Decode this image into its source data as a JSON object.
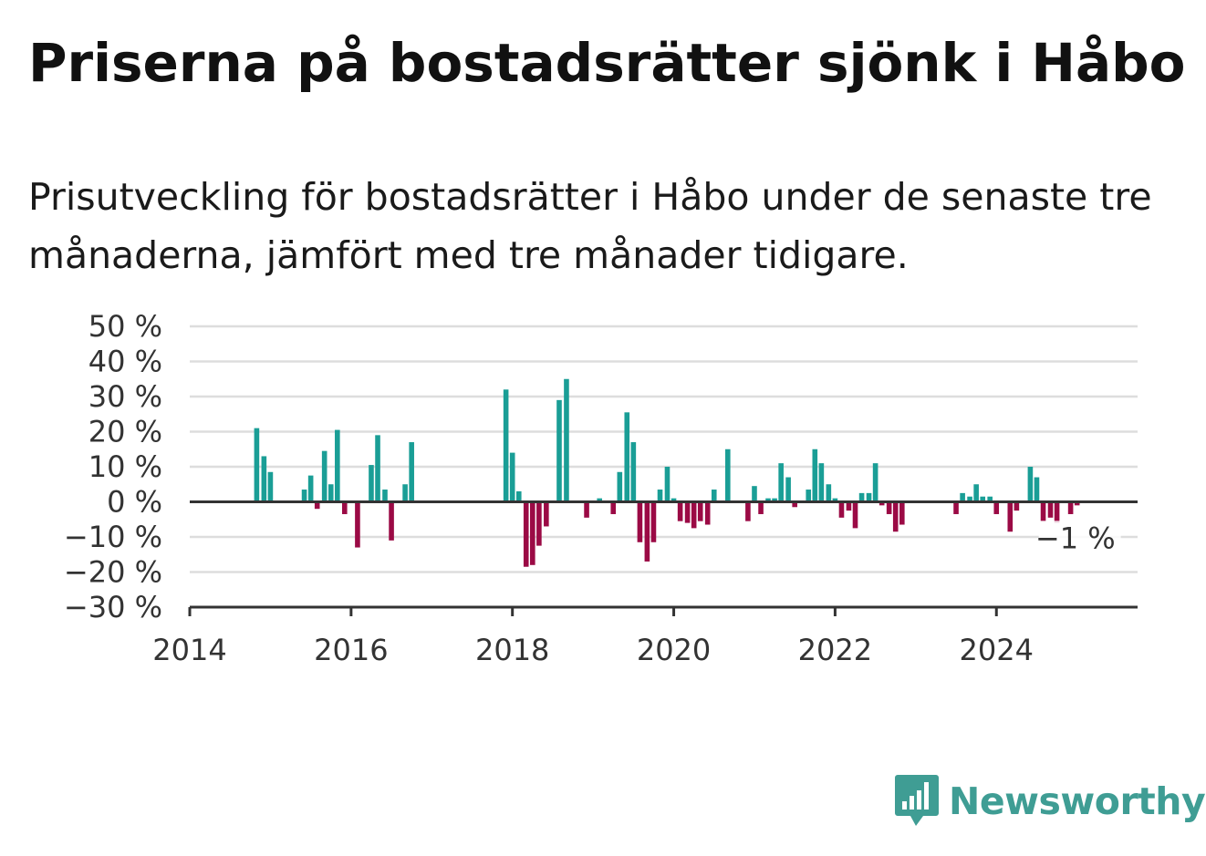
{
  "header": {
    "title": "Priserna på bostadsrätter sjönk i Håbo",
    "subtitle": "Prisutveckling för bostadsrätter i Håbo under de senaste tre månaderna, jämfört med tre månader tidigare."
  },
  "brand": {
    "name": "Newsworthy",
    "color": "#3f9d94",
    "icon": "bar-chart-bubble-icon"
  },
  "colors": {
    "positive": "#1a9e96",
    "negative": "#9b0a45",
    "grid": "#dddddd",
    "axis": "#333333"
  },
  "chart_data": {
    "type": "bar",
    "title": "Priserna på bostadsrätter sjönk i Håbo",
    "xlabel": "",
    "ylabel": "",
    "xlim": [
      2014.0,
      2025.75
    ],
    "ylim": [
      -30,
      50
    ],
    "yticks": [
      -30,
      -20,
      -10,
      0,
      10,
      20,
      30,
      40,
      50
    ],
    "ytick_labels": [
      "−30 %",
      "−20 %",
      "−10 %",
      "0 %",
      "10 %",
      "20 %",
      "30 %",
      "40 %",
      "50 %"
    ],
    "xticks": [
      2014,
      2016,
      2018,
      2020,
      2022,
      2024
    ],
    "xtick_labels": [
      "2014",
      "2016",
      "2018",
      "2020",
      "2022",
      "2024"
    ],
    "grid": true,
    "annotation": {
      "text": "−1 %",
      "x": 2025.0,
      "y": -1
    },
    "points": [
      {
        "x": 2014.83,
        "y": 21
      },
      {
        "x": 2014.92,
        "y": 13
      },
      {
        "x": 2015.0,
        "y": 8.5
      },
      {
        "x": 2015.42,
        "y": 3.5
      },
      {
        "x": 2015.5,
        "y": 7.5
      },
      {
        "x": 2015.58,
        "y": -2
      },
      {
        "x": 2015.67,
        "y": 14.5
      },
      {
        "x": 2015.75,
        "y": 5
      },
      {
        "x": 2015.83,
        "y": 20.5
      },
      {
        "x": 2015.92,
        "y": -3.5
      },
      {
        "x": 2016.08,
        "y": -13
      },
      {
        "x": 2016.25,
        "y": 10.5
      },
      {
        "x": 2016.33,
        "y": 19
      },
      {
        "x": 2016.42,
        "y": 3.5
      },
      {
        "x": 2016.5,
        "y": -11
      },
      {
        "x": 2016.67,
        "y": 5
      },
      {
        "x": 2016.75,
        "y": 17
      },
      {
        "x": 2017.92,
        "y": 32
      },
      {
        "x": 2018.0,
        "y": 14
      },
      {
        "x": 2018.08,
        "y": 3
      },
      {
        "x": 2018.17,
        "y": -18.5
      },
      {
        "x": 2018.25,
        "y": -18
      },
      {
        "x": 2018.33,
        "y": -12.5
      },
      {
        "x": 2018.42,
        "y": -7
      },
      {
        "x": 2018.58,
        "y": 29
      },
      {
        "x": 2018.67,
        "y": 35
      },
      {
        "x": 2018.92,
        "y": -4.5
      },
      {
        "x": 2019.08,
        "y": 1
      },
      {
        "x": 2019.25,
        "y": -3.5
      },
      {
        "x": 2019.33,
        "y": 8.5
      },
      {
        "x": 2019.42,
        "y": 25.5
      },
      {
        "x": 2019.5,
        "y": 17
      },
      {
        "x": 2019.58,
        "y": -11.5
      },
      {
        "x": 2019.67,
        "y": -17
      },
      {
        "x": 2019.75,
        "y": -11.5
      },
      {
        "x": 2019.83,
        "y": 3.5
      },
      {
        "x": 2019.92,
        "y": 10
      },
      {
        "x": 2020.0,
        "y": 1
      },
      {
        "x": 2020.08,
        "y": -5.5
      },
      {
        "x": 2020.17,
        "y": -6
      },
      {
        "x": 2020.25,
        "y": -7.5
      },
      {
        "x": 2020.33,
        "y": -5.5
      },
      {
        "x": 2020.42,
        "y": -6.5
      },
      {
        "x": 2020.5,
        "y": 3.5
      },
      {
        "x": 2020.67,
        "y": 15
      },
      {
        "x": 2020.92,
        "y": -5.5
      },
      {
        "x": 2021.0,
        "y": 4.5
      },
      {
        "x": 2021.08,
        "y": -3.5
      },
      {
        "x": 2021.17,
        "y": 1
      },
      {
        "x": 2021.25,
        "y": 1
      },
      {
        "x": 2021.33,
        "y": 11
      },
      {
        "x": 2021.42,
        "y": 7
      },
      {
        "x": 2021.5,
        "y": -1.5
      },
      {
        "x": 2021.67,
        "y": 3.5
      },
      {
        "x": 2021.75,
        "y": 15
      },
      {
        "x": 2021.83,
        "y": 11
      },
      {
        "x": 2021.92,
        "y": 5
      },
      {
        "x": 2022.0,
        "y": 1
      },
      {
        "x": 2022.08,
        "y": -4.5
      },
      {
        "x": 2022.17,
        "y": -2.5
      },
      {
        "x": 2022.25,
        "y": -7.5
      },
      {
        "x": 2022.33,
        "y": 2.5
      },
      {
        "x": 2022.42,
        "y": 2.5
      },
      {
        "x": 2022.5,
        "y": 11
      },
      {
        "x": 2022.58,
        "y": -1
      },
      {
        "x": 2022.67,
        "y": -3.5
      },
      {
        "x": 2022.75,
        "y": -8.5
      },
      {
        "x": 2022.83,
        "y": -6.5
      },
      {
        "x": 2023.5,
        "y": -3.5
      },
      {
        "x": 2023.58,
        "y": 2.5
      },
      {
        "x": 2023.67,
        "y": 1.5
      },
      {
        "x": 2023.75,
        "y": 5
      },
      {
        "x": 2023.83,
        "y": 1.5
      },
      {
        "x": 2023.92,
        "y": 1.5
      },
      {
        "x": 2024.0,
        "y": -3.5
      },
      {
        "x": 2024.17,
        "y": -8.5
      },
      {
        "x": 2024.25,
        "y": -2.5
      },
      {
        "x": 2024.42,
        "y": 10
      },
      {
        "x": 2024.5,
        "y": 7
      },
      {
        "x": 2024.58,
        "y": -5.5
      },
      {
        "x": 2024.67,
        "y": -4.5
      },
      {
        "x": 2024.75,
        "y": -6
      },
      {
        "x": 2024.92,
        "y": -3.5
      },
      {
        "x": 2025.0,
        "y": -1
      }
    ]
  }
}
